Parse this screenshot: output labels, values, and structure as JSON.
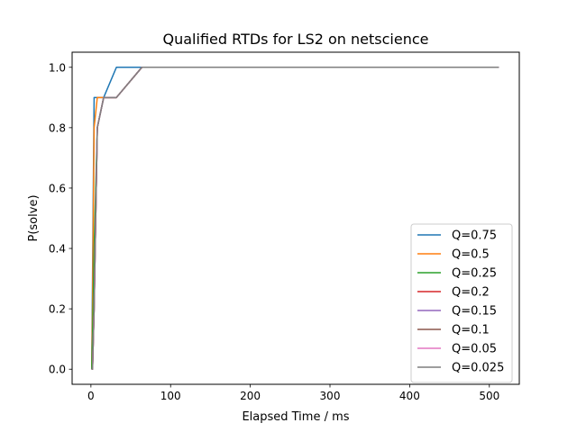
{
  "chart_data": {
    "type": "line",
    "title": "Qualified RTDs for LS2 on netscience",
    "xlabel": "Elapsed Time / ms",
    "ylabel": "P(solve)",
    "xlim": [
      -23.6,
      537.6
    ],
    "ylim": [
      -0.05,
      1.05
    ],
    "xticks": [
      0,
      100,
      200,
      300,
      400,
      500
    ],
    "yticks": [
      0.0,
      0.2,
      0.4,
      0.6,
      0.8,
      1.0
    ],
    "xtick_labels": [
      "0",
      "100",
      "200",
      "300",
      "400",
      "500"
    ],
    "ytick_labels": [
      "0.0",
      "0.2",
      "0.4",
      "0.6",
      "0.8",
      "1.0"
    ],
    "grid": false,
    "legend_position": "lower right",
    "series": [
      {
        "name": "Q=0.75",
        "color": "#1f77b4",
        "x": [
          1,
          2,
          4,
          8,
          16,
          32,
          64,
          128,
          256,
          512
        ],
        "y": [
          0.0,
          0.3,
          0.9,
          0.9,
          0.9,
          1.0,
          1.0,
          1.0,
          1.0,
          1.0
        ]
      },
      {
        "name": "Q=0.5",
        "color": "#ff7f0e",
        "x": [
          1,
          2,
          4,
          8,
          16,
          32,
          64,
          128,
          256,
          512
        ],
        "y": [
          0.0,
          0.2,
          0.8,
          0.9,
          0.9,
          0.9,
          1.0,
          1.0,
          1.0,
          1.0
        ]
      },
      {
        "name": "Q=0.25",
        "color": "#2ca02c",
        "x": [
          1,
          2,
          4,
          8,
          16,
          32,
          64,
          128,
          256,
          512
        ],
        "y": [
          0.0,
          0.1,
          0.4,
          0.8,
          0.9,
          0.9,
          1.0,
          1.0,
          1.0,
          1.0
        ]
      },
      {
        "name": "Q=0.2",
        "color": "#d62728",
        "x": [
          1,
          2,
          4,
          8,
          16,
          32,
          64,
          128,
          256,
          512
        ],
        "y": [
          0.0,
          0.0,
          0.2,
          0.8,
          0.9,
          0.9,
          1.0,
          1.0,
          1.0,
          1.0
        ]
      },
      {
        "name": "Q=0.15",
        "color": "#9467bd",
        "x": [
          1,
          2,
          4,
          8,
          16,
          32,
          64,
          128,
          256,
          512
        ],
        "y": [
          0.0,
          0.0,
          0.2,
          0.8,
          0.9,
          0.9,
          1.0,
          1.0,
          1.0,
          1.0
        ]
      },
      {
        "name": "Q=0.1",
        "color": "#8c564b",
        "x": [
          1,
          2,
          4,
          8,
          16,
          32,
          64,
          128,
          256,
          512
        ],
        "y": [
          0.0,
          0.0,
          0.2,
          0.8,
          0.9,
          0.9,
          1.0,
          1.0,
          1.0,
          1.0
        ]
      },
      {
        "name": "Q=0.05",
        "color": "#e377c2",
        "x": [
          1,
          2,
          4,
          8,
          16,
          32,
          64,
          128,
          256,
          512
        ],
        "y": [
          0.0,
          0.0,
          0.2,
          0.8,
          0.9,
          0.9,
          1.0,
          1.0,
          1.0,
          1.0
        ]
      },
      {
        "name": "Q=0.025",
        "color": "#7f7f7f",
        "x": [
          1,
          2,
          4,
          8,
          16,
          32,
          64,
          128,
          256,
          512
        ],
        "y": [
          0.0,
          0.0,
          0.2,
          0.8,
          0.9,
          0.9,
          1.0,
          1.0,
          1.0,
          1.0
        ]
      }
    ]
  }
}
